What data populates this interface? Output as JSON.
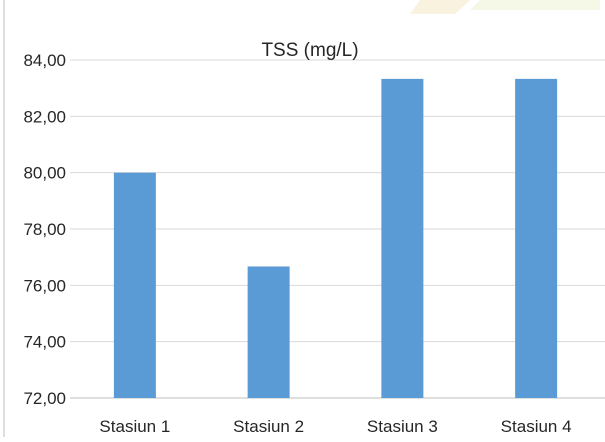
{
  "chart_data": {
    "type": "bar",
    "title": "TSS (mg/L)",
    "categories": [
      "Stasiun 1",
      "Stasiun 2",
      "Stasiun 3",
      "Stasiun 4"
    ],
    "values": [
      80.0,
      76.67,
      83.33,
      83.33
    ],
    "ylim": [
      72,
      84
    ],
    "yticks": [
      "72,00",
      "74,00",
      "76,00",
      "78,00",
      "80,00",
      "82,00",
      "84,00"
    ],
    "ytick_values": [
      72,
      74,
      76,
      78,
      80,
      82,
      84
    ],
    "grid": true,
    "legend": "none",
    "bar_color": "#5B9BD5",
    "grid_color": "#D9D9D9",
    "axis_color": "#BFBFBF"
  }
}
